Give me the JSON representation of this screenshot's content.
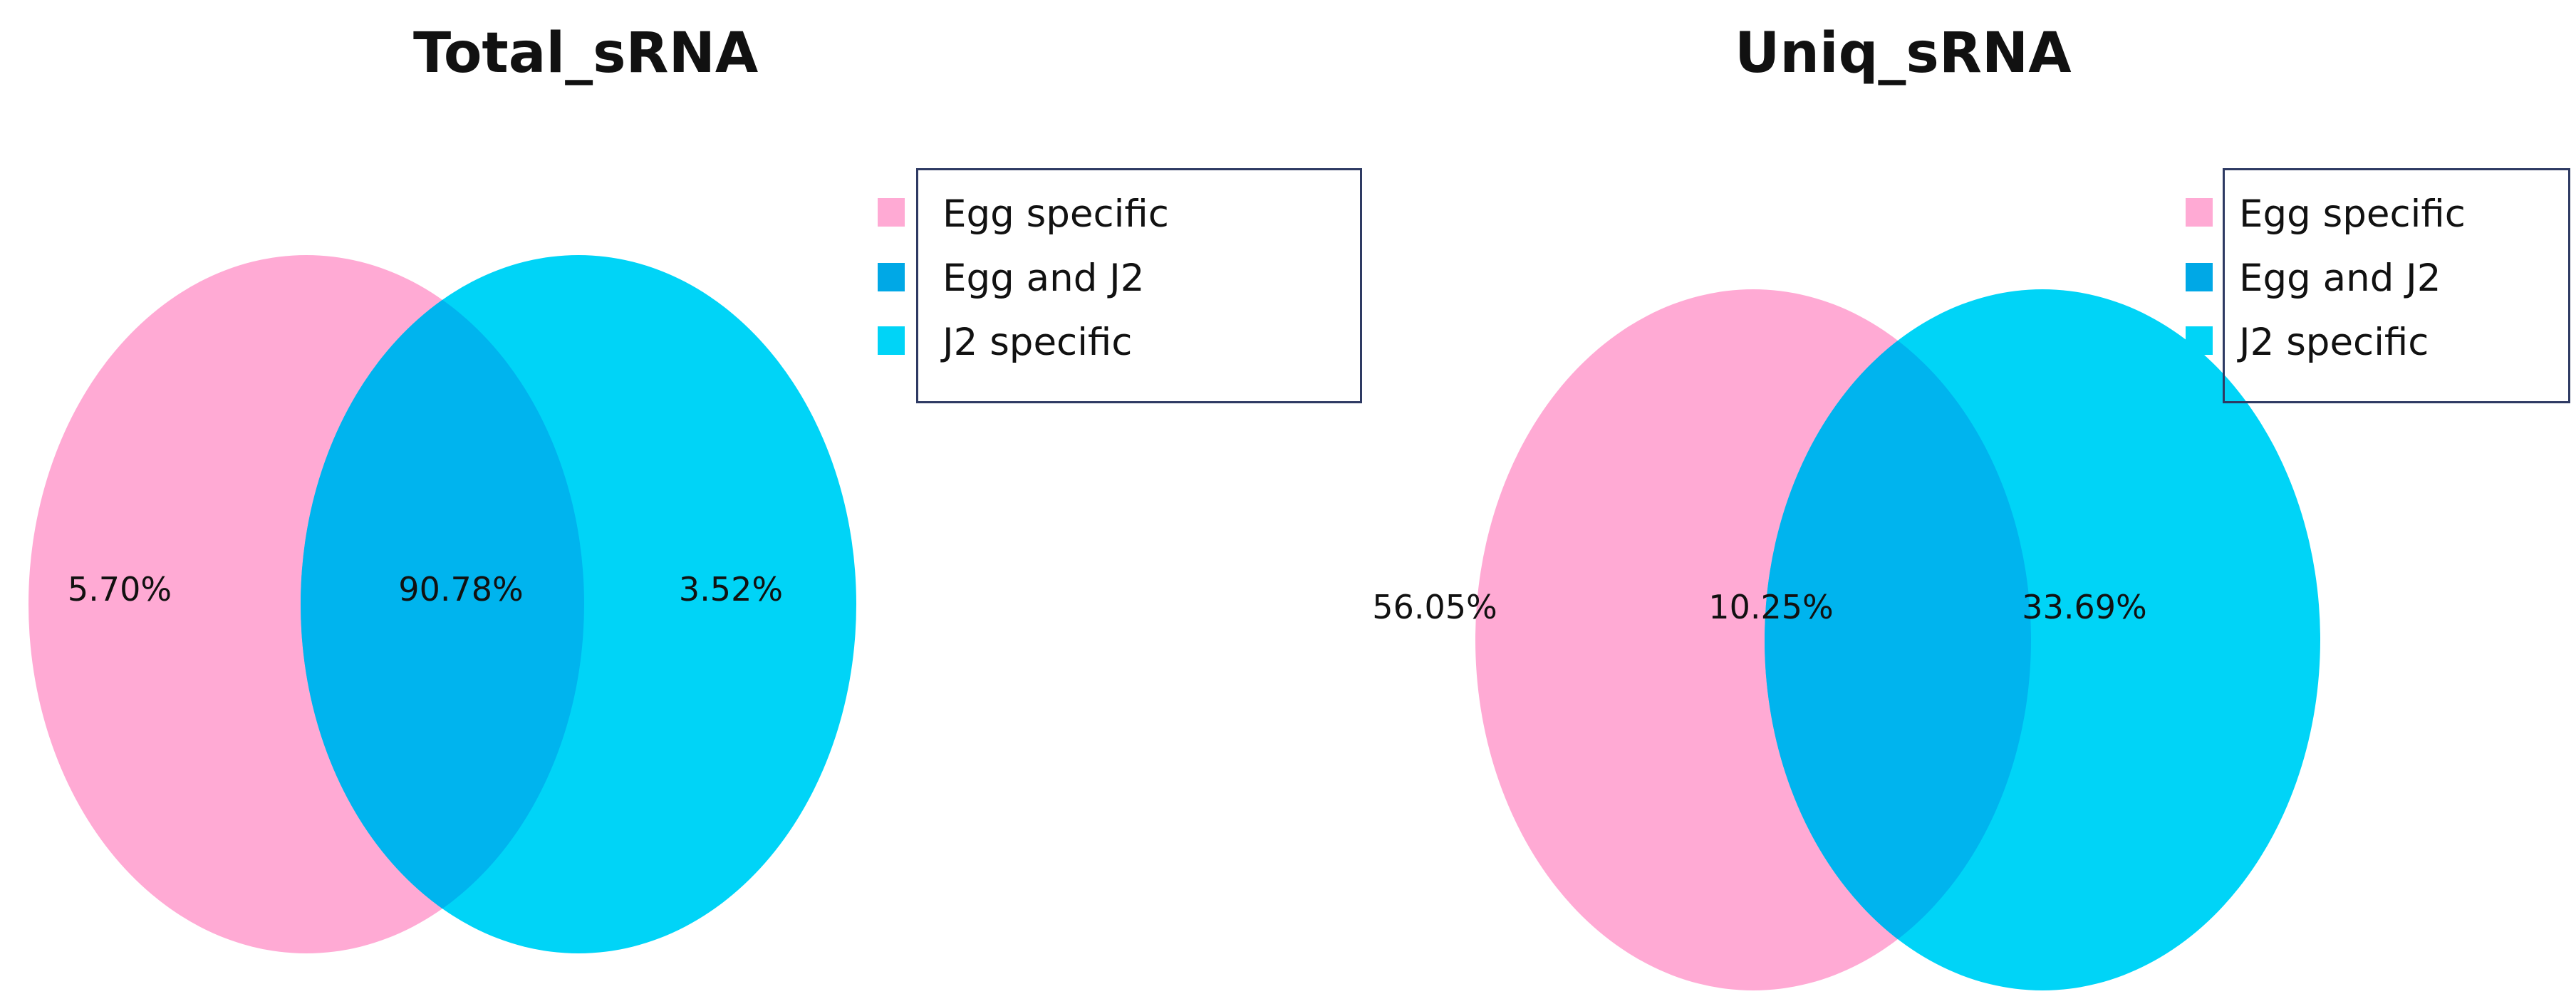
{
  "colors": {
    "egg_specific": "#ffaad4",
    "overlap": "#00b4ee",
    "j2_specific": "#00d4f7",
    "legend_border": "#2e3a63"
  },
  "legend_items": [
    {
      "label": "Egg specific",
      "color": "#ffaad4"
    },
    {
      "label": "Egg and J2",
      "color": "#00a8e6"
    },
    {
      "label": "J2 specific",
      "color": "#00d4f7"
    }
  ],
  "diagrams": [
    {
      "title": "Total_sRNA",
      "regions": {
        "egg_specific": "5.70%",
        "overlap": "90.78%",
        "j2_specific": "3.52%"
      }
    },
    {
      "title": "Uniq_sRNA",
      "regions": {
        "egg_specific": "56.05%",
        "overlap": "10.25%",
        "j2_specific": "33.69%"
      }
    }
  ]
}
